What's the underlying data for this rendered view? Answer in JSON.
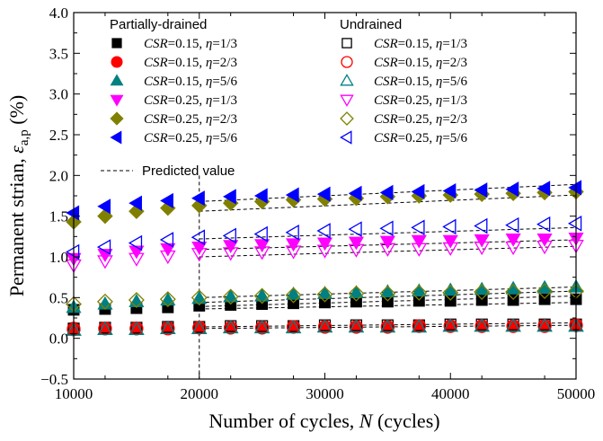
{
  "chart_data": {
    "type": "scatter",
    "title": "",
    "xlabel": "Number of cycles, N (cycles)",
    "xlabel_parts": {
      "prefix": "Number of cycles, ",
      "var": "N",
      "suffix": " (cycles)"
    },
    "ylabel": "Permanent strian, εa,p (%)",
    "ylabel_parts": {
      "prefix": "Permanent strian, ",
      "var": "ε",
      "sub": "a,p",
      "suffix": " (%)"
    },
    "xlim": [
      10000,
      50000
    ],
    "ylim": [
      -0.5,
      4.0
    ],
    "xticks": [
      10000,
      20000,
      30000,
      40000,
      50000
    ],
    "xtick_labels": [
      "10000",
      "20000",
      "30000",
      "40000",
      "50000"
    ],
    "yticks": [
      -0.5,
      0.0,
      0.5,
      1.0,
      1.5,
      2.0,
      2.5,
      3.0,
      3.5,
      4.0
    ],
    "ytick_labels": [
      "−0.5",
      "0.0",
      "0.5",
      "1.0",
      "1.5",
      "2.0",
      "2.5",
      "3.0",
      "3.5",
      "4.0"
    ],
    "vertical_reference_x": 20000,
    "legend": {
      "group1_title": "Partially-drained",
      "group2_title": "Undrained",
      "predicted_label": "Predicted value"
    },
    "x": [
      10000,
      12500,
      15000,
      17500,
      20000,
      22500,
      25000,
      27500,
      30000,
      32500,
      35000,
      37500,
      40000,
      42500,
      45000,
      47500,
      50000
    ],
    "series": [
      {
        "name": "CSR=0.15, η=1/3",
        "csr": "0.15",
        "eta": "1/3",
        "group": "partially-drained",
        "marker": "square",
        "filled": true,
        "color": "#000000",
        "values": [
          0.35,
          0.36,
          0.37,
          0.38,
          0.4,
          0.41,
          0.42,
          0.43,
          0.44,
          0.45,
          0.45,
          0.46,
          0.46,
          0.47,
          0.47,
          0.48,
          0.48
        ]
      },
      {
        "name": "CSR=0.15, η=2/3",
        "csr": "0.15",
        "eta": "2/3",
        "group": "partially-drained",
        "marker": "circle",
        "filled": true,
        "color": "#ff0000",
        "values": [
          0.12,
          0.12,
          0.12,
          0.13,
          0.13,
          0.13,
          0.13,
          0.14,
          0.14,
          0.14,
          0.14,
          0.15,
          0.15,
          0.15,
          0.15,
          0.16,
          0.16
        ]
      },
      {
        "name": "CSR=0.15, η=5/6",
        "csr": "0.15",
        "eta": "5/6",
        "group": "partially-drained",
        "marker": "triangle-up",
        "filled": true,
        "color": "#008080",
        "values": [
          0.38,
          0.42,
          0.45,
          0.47,
          0.49,
          0.51,
          0.52,
          0.54,
          0.55,
          0.56,
          0.57,
          0.58,
          0.59,
          0.6,
          0.61,
          0.62,
          0.63
        ]
      },
      {
        "name": "CSR=0.25, η=1/3",
        "csr": "0.25",
        "eta": "1/3",
        "group": "partially-drained",
        "marker": "triangle-down",
        "filled": true,
        "color": "#ff00ff",
        "values": [
          0.98,
          1.03,
          1.07,
          1.1,
          1.12,
          1.14,
          1.15,
          1.16,
          1.17,
          1.18,
          1.19,
          1.2,
          1.2,
          1.21,
          1.22,
          1.22,
          1.23
        ]
      },
      {
        "name": "CSR=0.25, η=2/3",
        "csr": "0.25",
        "eta": "2/3",
        "group": "partially-drained",
        "marker": "diamond",
        "filled": true,
        "color": "#808000",
        "values": [
          1.43,
          1.5,
          1.56,
          1.6,
          1.63,
          1.66,
          1.68,
          1.7,
          1.71,
          1.72,
          1.74,
          1.75,
          1.76,
          1.77,
          1.78,
          1.79,
          1.8
        ]
      },
      {
        "name": "CSR=0.25, η=5/6",
        "csr": "0.25",
        "eta": "5/6",
        "group": "partially-drained",
        "marker": "triangle-left",
        "filled": true,
        "color": "#0000ff",
        "values": [
          1.54,
          1.62,
          1.66,
          1.69,
          1.72,
          1.74,
          1.75,
          1.76,
          1.77,
          1.78,
          1.79,
          1.8,
          1.81,
          1.82,
          1.83,
          1.84,
          1.85
        ]
      },
      {
        "name": "CSR=0.15, η=1/3",
        "csr": "0.15",
        "eta": "1/3",
        "group": "undrained",
        "marker": "square",
        "filled": false,
        "color": "#000000",
        "values": [
          0.12,
          0.13,
          0.13,
          0.14,
          0.14,
          0.15,
          0.15,
          0.15,
          0.16,
          0.16,
          0.16,
          0.16,
          0.17,
          0.17,
          0.17,
          0.17,
          0.17
        ]
      },
      {
        "name": "CSR=0.15, η=2/3",
        "csr": "0.15",
        "eta": "2/3",
        "group": "undrained",
        "marker": "circle",
        "filled": false,
        "color": "#ff0000",
        "values": [
          0.11,
          0.12,
          0.12,
          0.12,
          0.13,
          0.13,
          0.13,
          0.14,
          0.14,
          0.14,
          0.14,
          0.15,
          0.15,
          0.15,
          0.15,
          0.15,
          0.16
        ]
      },
      {
        "name": "CSR=0.15, η=5/6",
        "csr": "0.15",
        "eta": "5/6",
        "group": "undrained",
        "marker": "triangle-up",
        "filled": false,
        "color": "#008080",
        "values": [
          0.1,
          0.11,
          0.11,
          0.12,
          0.12,
          0.13,
          0.13,
          0.13,
          0.14,
          0.14,
          0.14,
          0.14,
          0.15,
          0.15,
          0.15,
          0.15,
          0.15
        ]
      },
      {
        "name": "CSR=0.25, η=1/3",
        "csr": "0.25",
        "eta": "1/3",
        "group": "undrained",
        "marker": "triangle-down",
        "filled": false,
        "color": "#ff00ff",
        "values": [
          0.9,
          0.95,
          0.98,
          1.01,
          1.04,
          1.05,
          1.06,
          1.07,
          1.08,
          1.09,
          1.1,
          1.1,
          1.11,
          1.12,
          1.12,
          1.13,
          1.14
        ]
      },
      {
        "name": "CSR=0.25, η=2/3",
        "csr": "0.25",
        "eta": "2/3",
        "group": "undrained",
        "marker": "diamond",
        "filled": false,
        "color": "#808000",
        "values": [
          0.42,
          0.45,
          0.47,
          0.48,
          0.5,
          0.51,
          0.52,
          0.53,
          0.54,
          0.55,
          0.55,
          0.56,
          0.56,
          0.57,
          0.57,
          0.58,
          0.58
        ]
      },
      {
        "name": "CSR=0.25, η=5/6",
        "csr": "0.25",
        "eta": "5/6",
        "group": "undrained",
        "marker": "triangle-left",
        "filled": false,
        "color": "#0000ff",
        "values": [
          1.06,
          1.12,
          1.17,
          1.21,
          1.24,
          1.26,
          1.28,
          1.3,
          1.32,
          1.34,
          1.35,
          1.36,
          1.37,
          1.38,
          1.39,
          1.4,
          1.41
        ]
      }
    ],
    "predicted_lines": [
      {
        "x": [
          20000,
          50000
        ],
        "y": [
          1.68,
          1.89
        ]
      },
      {
        "x": [
          20000,
          50000
        ],
        "y": [
          1.56,
          1.76
        ]
      },
      {
        "x": [
          20000,
          50000
        ],
        "y": [
          1.22,
          1.36
        ]
      },
      {
        "x": [
          20000,
          50000
        ],
        "y": [
          1.09,
          1.21
        ]
      },
      {
        "x": [
          20000,
          50000
        ],
        "y": [
          1.0,
          1.13
        ]
      },
      {
        "x": [
          20000,
          50000
        ],
        "y": [
          0.5,
          0.63
        ]
      },
      {
        "x": [
          20000,
          50000
        ],
        "y": [
          0.44,
          0.58
        ]
      },
      {
        "x": [
          20000,
          50000
        ],
        "y": [
          0.39,
          0.52
        ]
      },
      {
        "x": [
          20000,
          50000
        ],
        "y": [
          0.36,
          0.44
        ]
      },
      {
        "x": [
          20000,
          50000
        ],
        "y": [
          0.14,
          0.19
        ]
      },
      {
        "x": [
          20000,
          50000
        ],
        "y": [
          0.12,
          0.16
        ]
      }
    ]
  }
}
